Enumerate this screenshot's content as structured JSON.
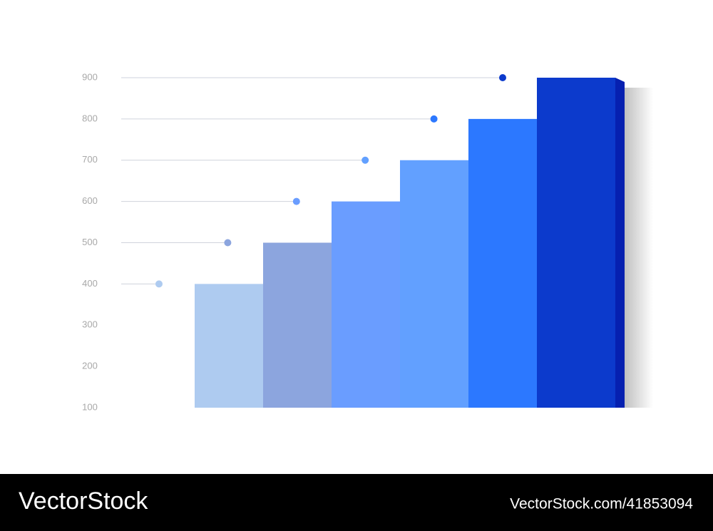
{
  "chart_data": {
    "type": "bar",
    "categories": [
      null,
      null,
      null,
      null,
      null,
      null
    ],
    "values": [
      400,
      500,
      600,
      700,
      800,
      900
    ],
    "colors": [
      "#aecbf0",
      "#8ca5de",
      "#6a9dff",
      "#62a0ff",
      "#2c78ff",
      "#0c3acc"
    ],
    "side_colors": [
      "#7d82d6",
      "#6b7fcc",
      "#4f78f0",
      "#4a6ef5",
      "#1f5ee8",
      "#0620b0"
    ],
    "ylim": [
      100,
      900
    ],
    "yticks": [
      100,
      200,
      300,
      400,
      500,
      600,
      700,
      800,
      900
    ]
  },
  "watermark": {
    "brand": "VectorStock",
    "id": "VectorStock.com/41853094"
  }
}
